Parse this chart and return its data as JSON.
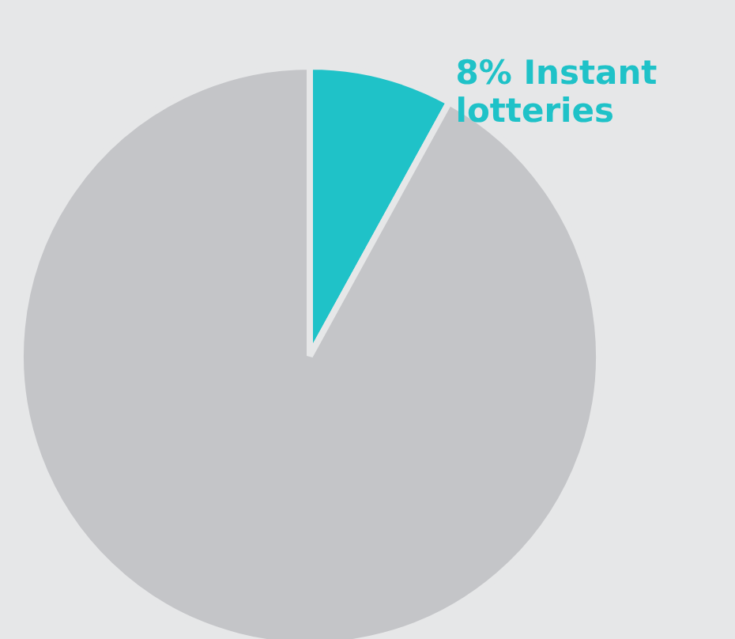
{
  "chart_data": {
    "type": "pie",
    "categories": [
      "Instant lotteries",
      null
    ],
    "values": [
      8,
      92
    ],
    "colors": [
      "#1fc2c8",
      "#c4c5c8"
    ],
    "value_labels": [
      "8%",
      null
    ]
  }
}
